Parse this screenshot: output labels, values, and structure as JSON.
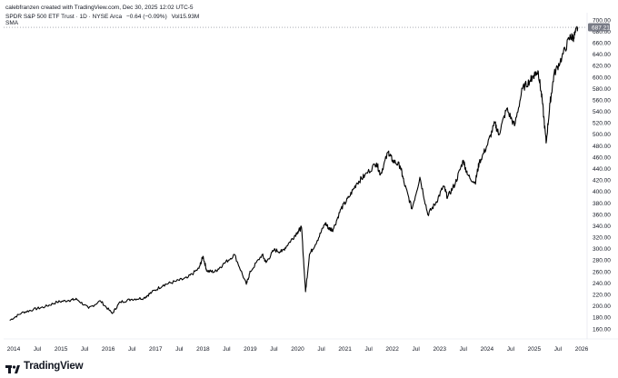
{
  "header": {
    "text": "calebfranzen created with TradingView.com, Dec 30, 2025 12:02 UTC-5"
  },
  "legend": {
    "symbol": "SPDR S&P 500 ETF Trust · 1D · NYSE Arca",
    "change": "−0.64 (−0.09%)",
    "volume": "Vol15.93M",
    "indicator": "SMA"
  },
  "footer": {
    "brand": "TradingView"
  },
  "chart_data": {
    "type": "line",
    "title": "SPDR S&P 500 ETF Trust · 1D · NYSE Arca",
    "last_price": "687.21",
    "last_price_color": "#787b86",
    "line_color": "#000000",
    "grid": false,
    "ylim": [
      150,
      710
    ],
    "y_ticks": [
      "160.00",
      "180.00",
      "200.00",
      "220.00",
      "240.00",
      "260.00",
      "280.00",
      "300.00",
      "320.00",
      "340.00",
      "360.00",
      "380.00",
      "400.00",
      "420.00",
      "440.00",
      "460.00",
      "480.00",
      "500.00",
      "520.00",
      "540.00",
      "560.00",
      "580.00",
      "600.00",
      "620.00",
      "640.00",
      "660.00",
      "680.00",
      "700.00"
    ],
    "x_ticks": [
      "2014",
      "Jul",
      "2015",
      "Jul",
      "2016",
      "Jul",
      "2017",
      "Jul",
      "2018",
      "Jul",
      "2019",
      "Jul",
      "2020",
      "Jul",
      "2021",
      "Jul",
      "2022",
      "Jul",
      "2023",
      "Jul",
      "2024",
      "Jul",
      "2025",
      "Jul",
      "2026"
    ],
    "x": [
      "2013-12",
      "2014-03",
      "2014-06",
      "2014-09",
      "2014-12",
      "2015-03",
      "2015-05",
      "2015-08",
      "2015-11",
      "2016-02",
      "2016-04",
      "2016-07",
      "2016-10",
      "2016-12",
      "2017-03",
      "2017-06",
      "2017-09",
      "2017-12",
      "2018-01",
      "2018-02",
      "2018-04",
      "2018-06",
      "2018-09",
      "2018-12",
      "2019-01",
      "2019-04",
      "2019-05",
      "2019-07",
      "2019-09",
      "2019-11",
      "2020-01",
      "2020-02",
      "2020-03",
      "2020-04",
      "2020-06",
      "2020-08",
      "2020-09",
      "2020-10",
      "2020-12",
      "2021-02",
      "2021-04",
      "2021-06",
      "2021-09",
      "2021-10",
      "2021-12",
      "2022-01",
      "2022-03",
      "2022-04",
      "2022-06",
      "2022-08",
      "2022-10",
      "2022-12",
      "2023-02",
      "2023-03",
      "2023-05",
      "2023-07",
      "2023-08",
      "2023-10",
      "2023-11",
      "2024-01",
      "2024-03",
      "2024-04",
      "2024-06",
      "2024-08",
      "2024-10",
      "2024-12",
      "2025-01",
      "2025-02",
      "2025-03",
      "2025-04",
      "2025-05",
      "2025-06",
      "2025-08",
      "2025-10",
      "2025-11",
      "2025-12"
    ],
    "values": [
      175,
      188,
      194,
      199,
      207,
      210,
      212,
      196,
      209,
      187,
      207,
      212,
      214,
      224,
      237,
      243,
      249,
      266,
      287,
      261,
      260,
      272,
      290,
      238,
      260,
      290,
      276,
      298,
      295,
      312,
      330,
      337,
      225,
      290,
      315,
      345,
      335,
      334,
      370,
      390,
      415,
      428,
      450,
      430,
      470,
      455,
      445,
      415,
      370,
      425,
      360,
      380,
      410,
      390,
      415,
      455,
      430,
      415,
      450,
      480,
      520,
      500,
      545,
      515,
      580,
      595,
      605,
      610,
      560,
      485,
      555,
      605,
      635,
      670,
      670,
      687
    ]
  }
}
